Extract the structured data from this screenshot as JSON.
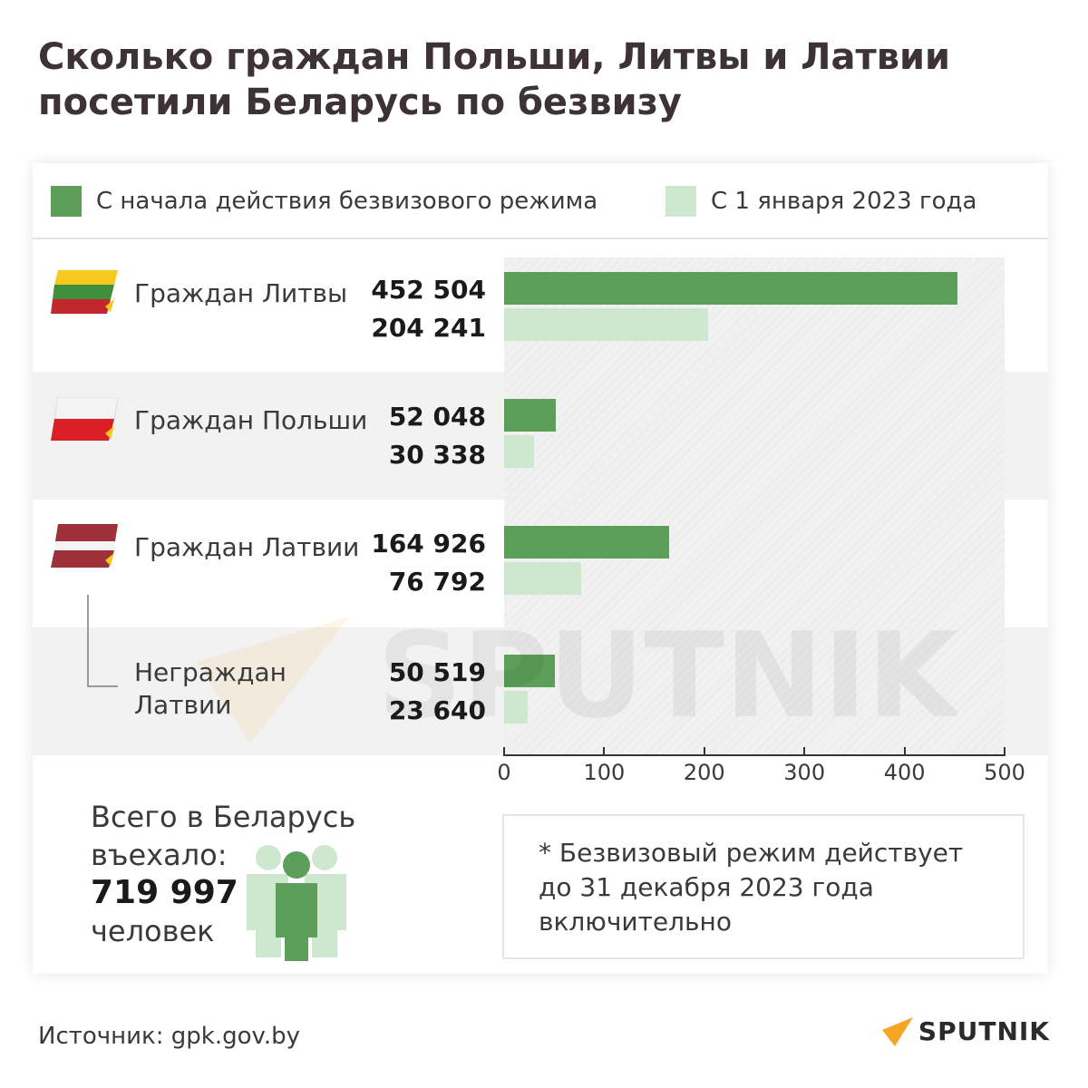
{
  "title": "Сколько граждан Польши, Литвы и Латвии посетили Беларусь по безвизу",
  "legend": {
    "series1": "С начала действия безвизового режима",
    "series2": "С 1 января 2023 года"
  },
  "rows": [
    {
      "label": "Граждан Литвы",
      "v1": "452 504",
      "v2": "204 241"
    },
    {
      "label": "Граждан Польши",
      "v1": "52 048",
      "v2": "30 338"
    },
    {
      "label": "Граждан Латвии",
      "v1": "164 926",
      "v2": "76 792"
    },
    {
      "label": "Неграждан Латвии",
      "v1": "50 519",
      "v2": "23 640"
    }
  ],
  "total": {
    "line1": "Всего в Беларусь",
    "line2": "въехало:",
    "value": "719 997",
    "line4": "человек"
  },
  "note": "* Безвизовый режим действует до 31 декабря 2023 года включительно",
  "source": "Источник: gpk.gov.by",
  "brand": "SPUTNIK",
  "watermark": "SPUTNIK",
  "colors": {
    "series1": "#5d9e5a",
    "series2": "#cde8cf",
    "title": "#3d3236",
    "brand_orange": "#f5a623"
  },
  "chart_data": {
    "type": "bar",
    "orientation": "horizontal",
    "categories": [
      "Граждан Литвы",
      "Граждан Польши",
      "Граждан Латвии",
      "Неграждан Латвии"
    ],
    "series": [
      {
        "name": "С начала действия безвизового режима",
        "values": [
          452504,
          52048,
          164926,
          50519
        ]
      },
      {
        "name": "С 1 января 2023 года",
        "values": [
          204241,
          30338,
          76792,
          23640
        ]
      }
    ],
    "xlim": [
      0,
      500
    ],
    "xticks": [
      "0",
      "100",
      "200",
      "300",
      "400",
      "500"
    ],
    "x_scale_divisor": 1000,
    "legend_position": "top"
  }
}
